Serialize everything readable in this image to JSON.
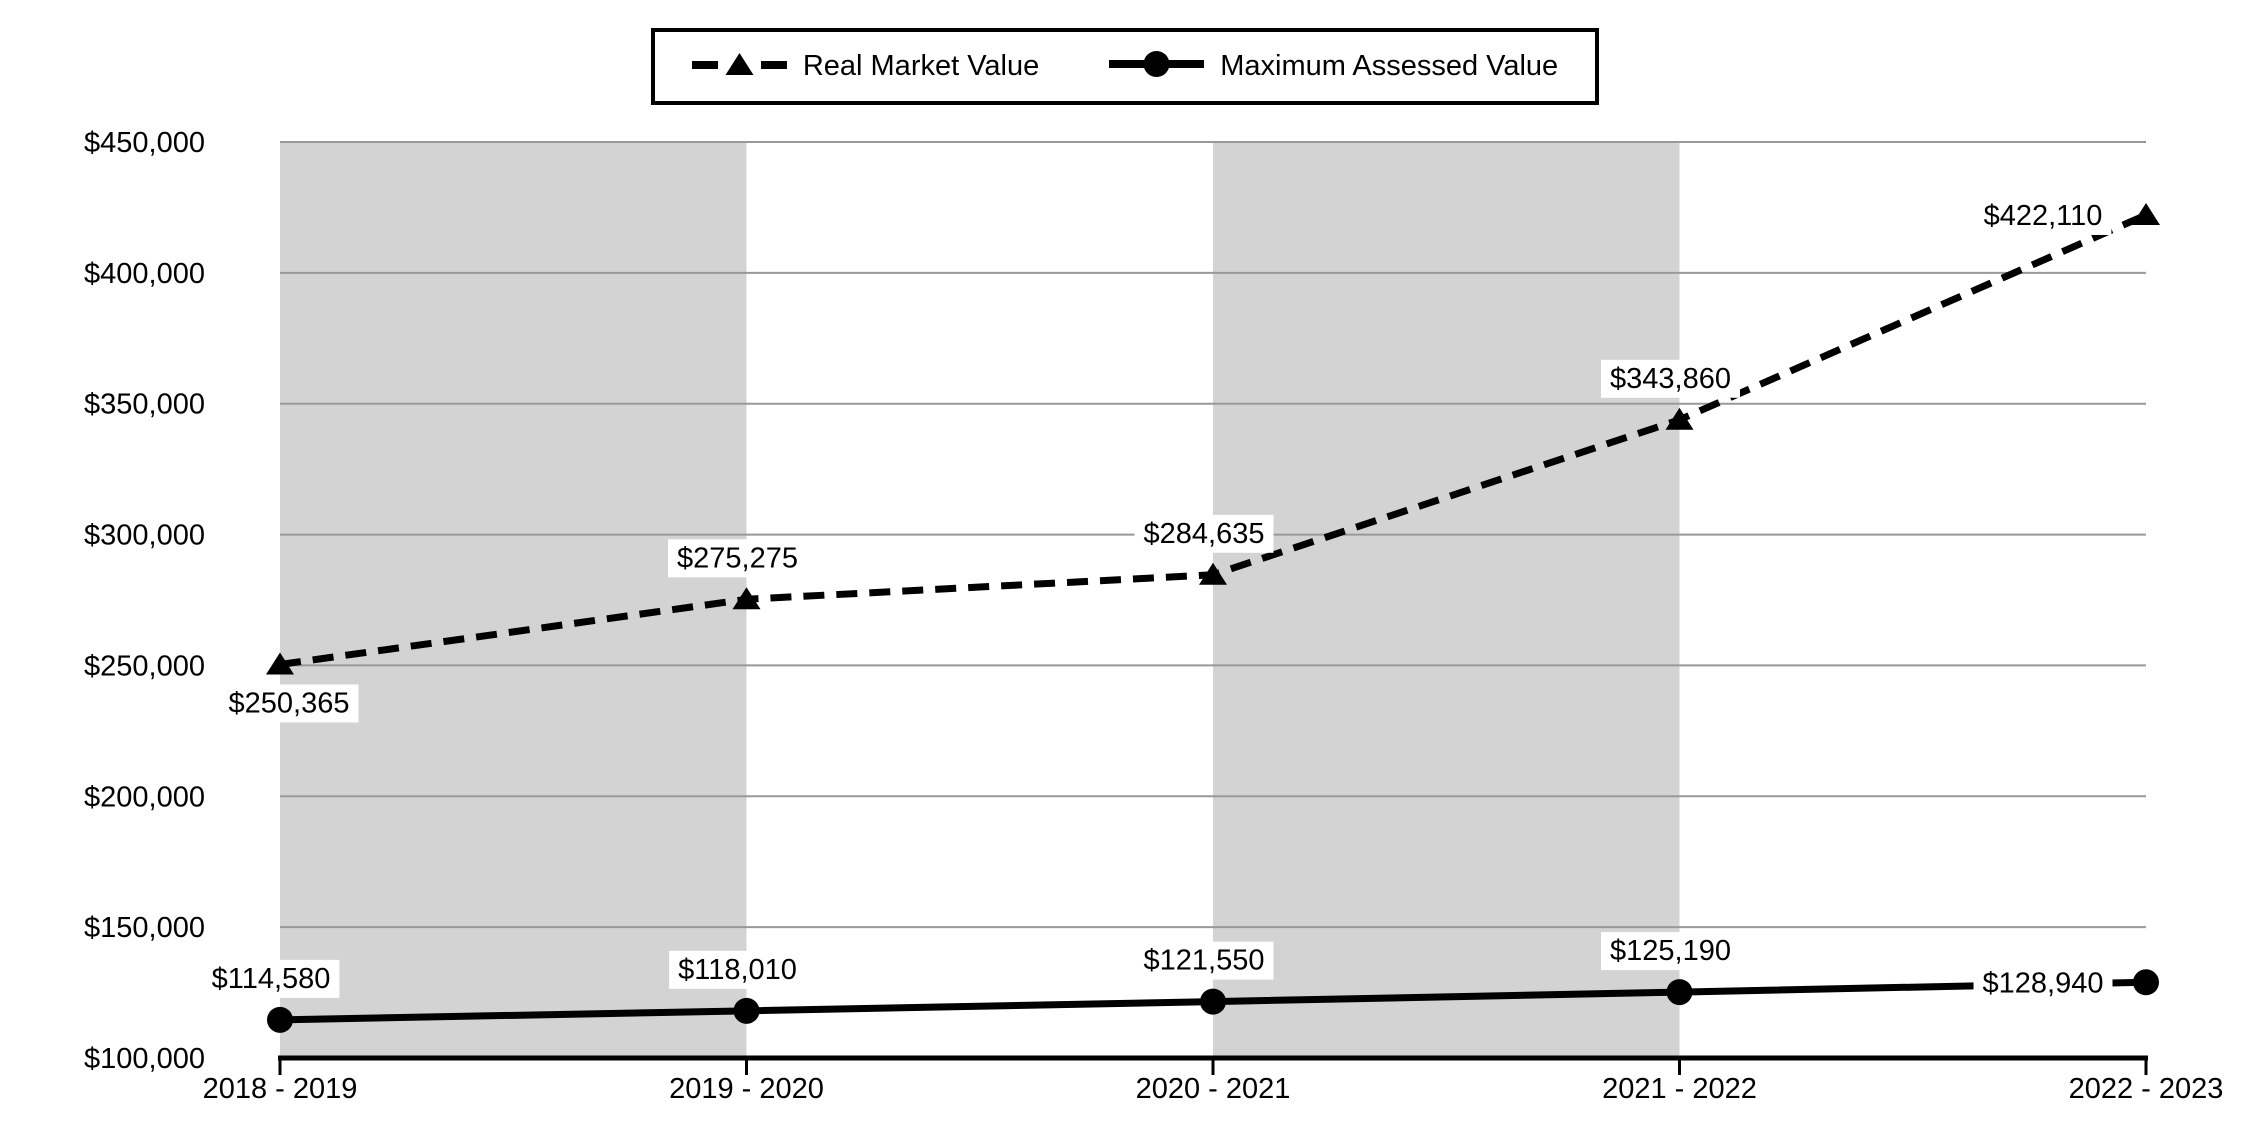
{
  "legend": {
    "items": [
      {
        "label": "Real Market Value",
        "icon": "dashed-line-triangle-marker"
      },
      {
        "label": "Maximum Assessed Value",
        "icon": "solid-line-circle-marker"
      }
    ]
  },
  "chart_data": {
    "type": "line",
    "categories": [
      "2018 - 2019",
      "2019 - 2020",
      "2020 - 2021",
      "2021 - 2022",
      "2022 - 2023"
    ],
    "series": [
      {
        "name": "Real Market Value",
        "values": [
          250365,
          275275,
          284635,
          343860,
          422110
        ],
        "data_labels": [
          "$250,365",
          "$275,275",
          "$284,635",
          "$343,860",
          "$422,110"
        ],
        "label_positions": [
          "below",
          "above",
          "above",
          "above",
          "left"
        ],
        "line_style": "dashed",
        "marker": "triangle"
      },
      {
        "name": "Maximum Assessed Value",
        "values": [
          114580,
          118010,
          121550,
          125190,
          128940
        ],
        "data_labels": [
          "$114,580",
          "$118,010",
          "$121,550",
          "$125,190",
          "$128,940"
        ],
        "label_positions": [
          "above",
          "above",
          "above",
          "above",
          "left"
        ],
        "line_style": "solid",
        "marker": "circle"
      }
    ],
    "title": "",
    "xlabel": "",
    "ylabel": "",
    "ylim": [
      100000,
      450000
    ],
    "ytick_step": 50000,
    "ytick_labels": [
      "$100,000",
      "$150,000",
      "$200,000",
      "$250,000",
      "$300,000",
      "$350,000",
      "$400,000",
      "$450,000"
    ],
    "grid": true,
    "legend_position": "top-center",
    "plot_band_start_indices": [
      0,
      2
    ],
    "colors": {
      "band": "#d3d3d3",
      "gridline": "#999999",
      "series": "#000000",
      "axis": "#000000",
      "label_bg": "#ffffff",
      "text": "#000000",
      "background": "#ffffff"
    }
  }
}
